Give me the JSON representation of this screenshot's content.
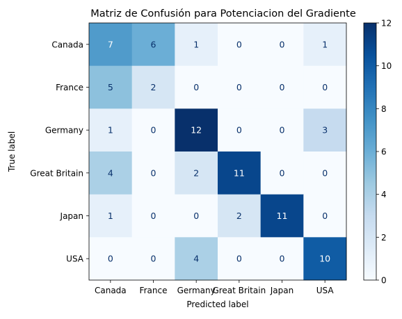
{
  "chart_data": {
    "type": "heatmap",
    "title": "Matriz de Confusión para Potenciacion del Gradiente",
    "xlabel": "Predicted label",
    "ylabel": "True label",
    "x_categories": [
      "Canada",
      "France",
      "Germany",
      "Great Britain",
      "Japan",
      "USA"
    ],
    "y_categories": [
      "Canada",
      "France",
      "Germany",
      "Great Britain",
      "Japan",
      "USA"
    ],
    "values": [
      [
        7,
        6,
        1,
        0,
        0,
        1
      ],
      [
        5,
        2,
        0,
        0,
        0,
        0
      ],
      [
        1,
        0,
        12,
        0,
        0,
        3
      ],
      [
        4,
        0,
        2,
        11,
        0,
        0
      ],
      [
        1,
        0,
        0,
        2,
        11,
        0
      ],
      [
        0,
        0,
        4,
        0,
        0,
        10
      ]
    ],
    "colormap": "Blues",
    "colorbar": {
      "min": 0,
      "max": 12,
      "ticks": [
        0,
        2,
        4,
        6,
        8,
        10,
        12
      ]
    },
    "text_color_light": "#ffffff",
    "text_color_dark": "#08306b",
    "grid": false
  }
}
